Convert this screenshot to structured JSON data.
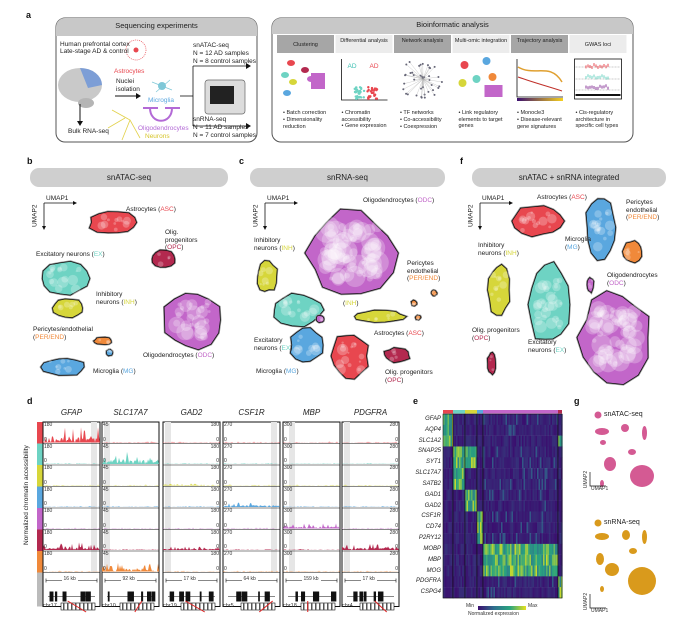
{
  "panel_labels": {
    "a": "a",
    "b": "b",
    "c": "c",
    "d": "d",
    "e": "e",
    "f": "f",
    "g": "g"
  },
  "sequencing": {
    "title": "Sequencing experiments",
    "tissue": "Human prefrontal cortex",
    "condition": "Late-stage AD & control",
    "nuclei_isolation": "Nuclei isolation",
    "cells": {
      "astrocytes": "Astrocytes",
      "microglia": "Microglia",
      "oligodendrocytes": "Oligodendrocytes",
      "neurons": "Neurons"
    },
    "bulk": "Bulk RNA-seq",
    "atac": {
      "name": "snATAC-seq",
      "ad": "N = 12 AD samples",
      "control": "N = 8 control samples"
    },
    "rna": {
      "name": "snRNA-seq",
      "ad": "N = 11 AD samples",
      "control": "N = 7 control samples"
    }
  },
  "bioinformatic": {
    "title": "Bioinformatic analysis",
    "diff_labels": [
      "AD",
      "AD"
    ],
    "columns": [
      {
        "tab": "Clustering",
        "bullets": [
          "Batch correction",
          "Dimensionality reduction"
        ]
      },
      {
        "tab": "Differential analysis",
        "bullets": [
          "Chromatin accessibility",
          "Gene expression"
        ]
      },
      {
        "tab": "Network analysis",
        "bullets": [
          "TF networks",
          "Co-accessibility",
          "Coexpression"
        ]
      },
      {
        "tab": "Multi-omic integration",
        "bullets": [
          "Link regulatory elements to target genes"
        ]
      },
      {
        "tab": "Trajectory analysis",
        "bullets": [
          "Monocle3",
          "Disease-relevant gene signatures"
        ]
      },
      {
        "tab": "GWAS loci",
        "bullets": [
          "Cis-regulatory architecture in specific cell types"
        ]
      }
    ]
  },
  "colors": {
    "ASC": "#e8474f",
    "OPC": "#b3294f",
    "EX": "#6ed3c3",
    "INH": "#d6d63a",
    "PER": "#f0893a",
    "MG": "#5aa7df",
    "ODC": "#c266c9"
  },
  "umap_axes": {
    "x": "UMAP1",
    "y": "UMAP2"
  },
  "umaps": [
    {
      "header": "snATAC-seq",
      "labels": [
        {
          "name": "Astrocytes",
          "abbr": "ASC"
        },
        {
          "name": "Olig. progenitors",
          "abbr": "OPC"
        },
        {
          "name": "Excitatory neurons",
          "abbr": "EX"
        },
        {
          "name": "Inhibitory neurons",
          "abbr": "INH"
        },
        {
          "name": "Pericytes/endothelial",
          "abbr": "PER/END"
        },
        {
          "name": "Microglia",
          "abbr": "MG"
        },
        {
          "name": "Oligodendrocytes",
          "abbr": "ODC"
        }
      ]
    },
    {
      "header": "snRNA-seq",
      "labels": [
        {
          "name": "Oligodendrocytes",
          "abbr": "ODC"
        },
        {
          "name": "Inhibitory neurons",
          "abbr": "INH"
        },
        {
          "name": "Pericytes endothelial",
          "abbr": "PER/END"
        },
        {
          "name": "",
          "abbr": "INH"
        },
        {
          "name": "Excitatory neurons",
          "abbr": "EX"
        },
        {
          "name": "Microglia",
          "abbr": "MG"
        },
        {
          "name": "Astrocytes",
          "abbr": "ASC"
        },
        {
          "name": "Olig. progenitors",
          "abbr": "OPC"
        }
      ]
    },
    {
      "header": "snATAC + snRNA integrated",
      "labels": [
        {
          "name": "Astrocytes",
          "abbr": "ASC"
        },
        {
          "name": "Pericytes endothelial",
          "abbr": "PER/END"
        },
        {
          "name": "Microglia",
          "abbr": "MG"
        },
        {
          "name": "Inhibitory neurons",
          "abbr": "INH"
        },
        {
          "name": "Oligodendrocytes",
          "abbr": "ODC"
        },
        {
          "name": "Olig. progenitors",
          "abbr": "OPC"
        },
        {
          "name": "Excitatory neurons",
          "abbr": "EX"
        }
      ]
    }
  ],
  "tracks": {
    "ylabel": "Normalized chromatin accessibility",
    "row_cell_types": [
      "ASC",
      "EX",
      "INH",
      "MG",
      "ODC",
      "OPC",
      "PER"
    ],
    "genes": [
      {
        "gene": "GFAP",
        "ymax": "180",
        "ymin": "0",
        "scale": "16 kb",
        "chrom": "chr17"
      },
      {
        "gene": "SLC17A7",
        "ymax": "45",
        "ymin": "0",
        "scale": "92 kb",
        "chrom": "chr10"
      },
      {
        "gene": "GAD2",
        "ymax": "180",
        "ymin": "0",
        "scale": "17 kb",
        "chrom": "chr19"
      },
      {
        "gene": "CSF1R",
        "ymax": "270",
        "ymin": "0",
        "scale": "64 kb",
        "chrom": "chr5"
      },
      {
        "gene": "MBP",
        "ymax": "300",
        "ymin": "0",
        "scale": "159 kb",
        "chrom": "chr18"
      },
      {
        "gene": "PDGFRA",
        "ymax": "280",
        "ymin": "0",
        "scale": "17 kb",
        "chrom": "chr4"
      }
    ]
  },
  "heatmap": {
    "genes": [
      "GFAP",
      "AQP4",
      "SLC1A2",
      "SNAP25",
      "SYT1",
      "SLC17A7",
      "SATB2",
      "GAD1",
      "GAD2",
      "CSF1R",
      "CD74",
      "P2RY12",
      "MOBP",
      "MBP",
      "MOG",
      "PDGFRA",
      "CSPG4"
    ],
    "column_groups": [
      "ASC",
      "EX",
      "INH",
      "MG",
      "ODC",
      "OPC"
    ],
    "colorbar_min": "Min",
    "colorbar_max": "Max",
    "colorbar_label": "Normalized expression",
    "colormap": [
      "#3b0f6f",
      "#2f6f8e",
      "#2aa57f",
      "#e6e21e"
    ]
  },
  "panel_g": {
    "atac": {
      "name": "snATAC-seq",
      "color": "#d45a93"
    },
    "rna": {
      "name": "snRNA-seq",
      "color": "#d99a1c"
    },
    "axes": {
      "x": "UMAP1",
      "y": "UMAP2"
    }
  }
}
